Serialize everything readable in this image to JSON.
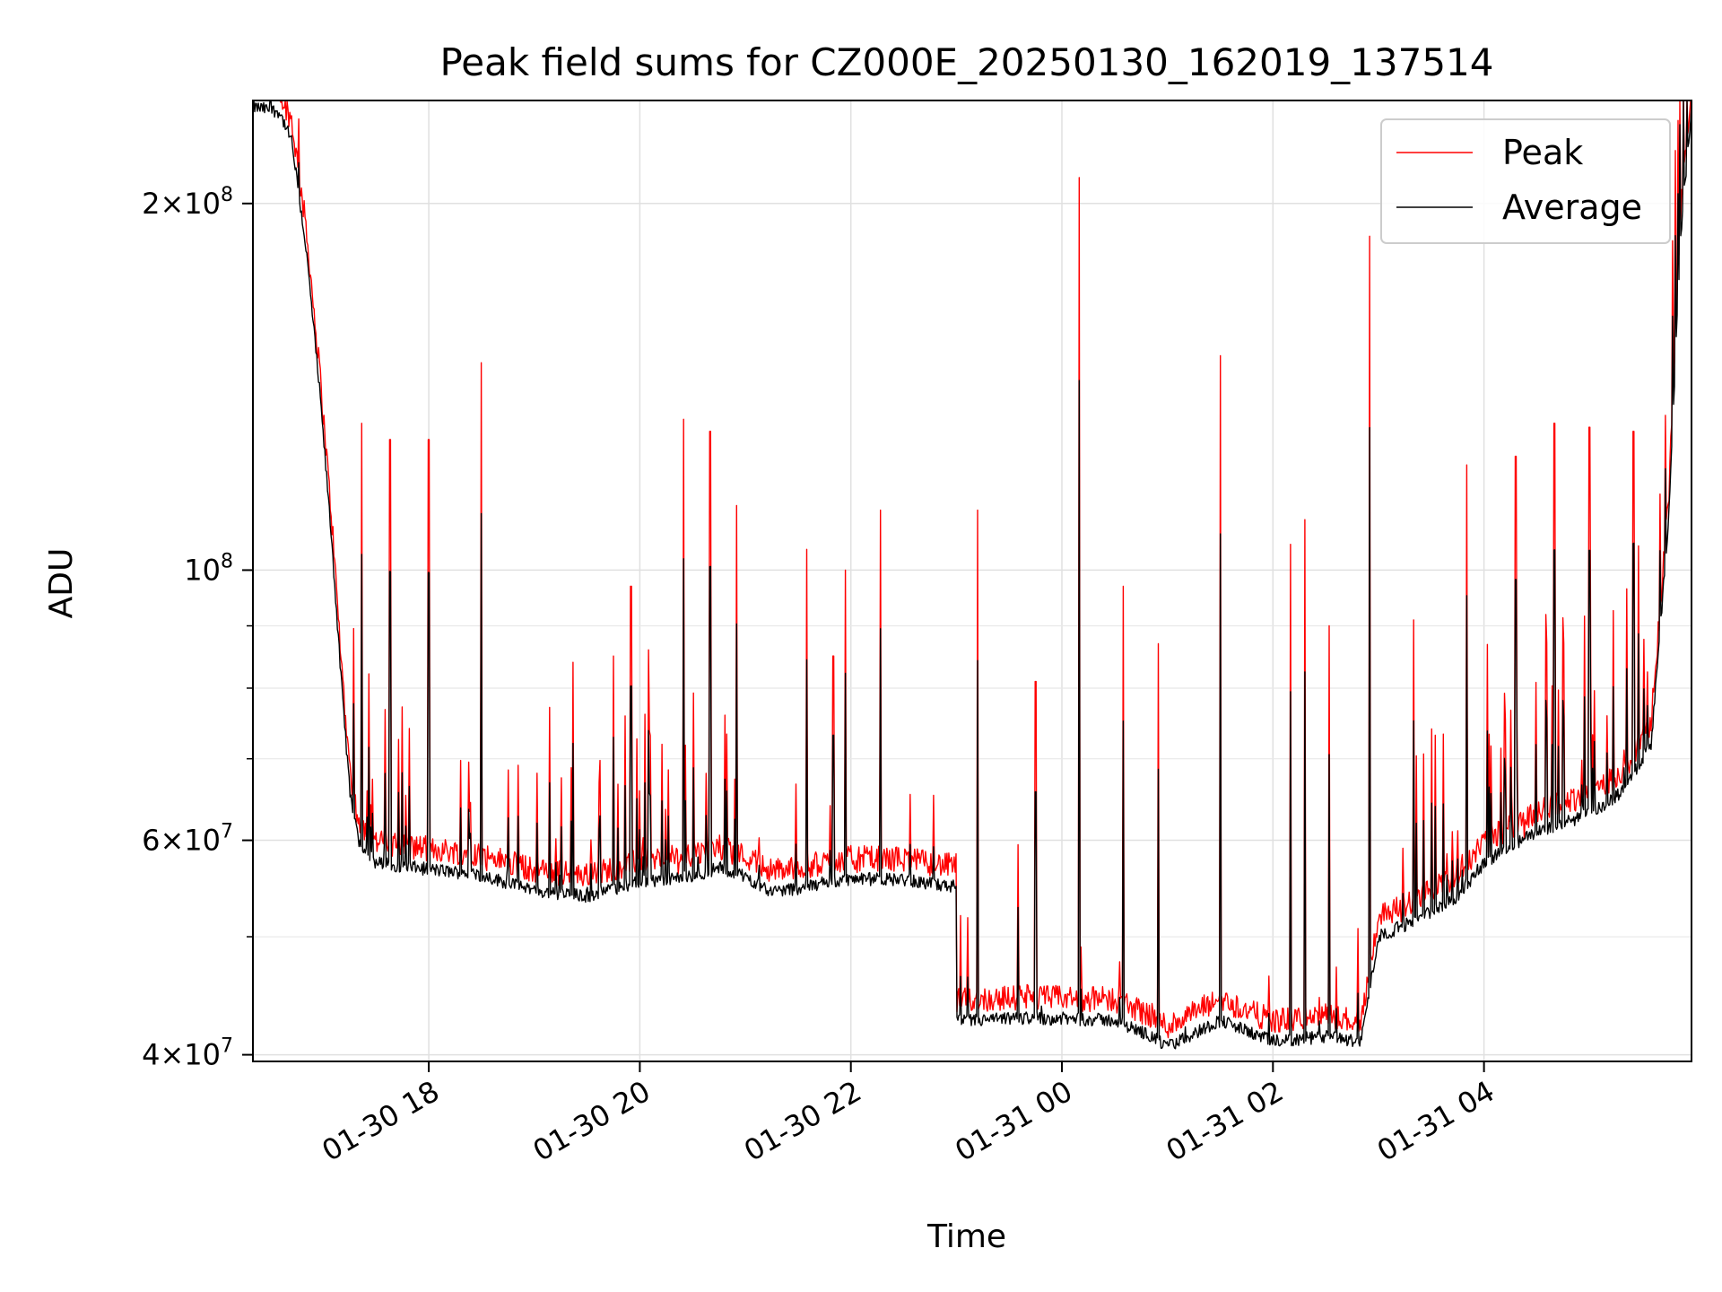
{
  "chart_data": {
    "type": "line",
    "title": "Peak field sums for CZ000E_20250130_162019_137514",
    "xlabel": "Time",
    "ylabel": "ADU",
    "y_scale": "log",
    "ylim": [
      39500000,
      243000000
    ],
    "xlim": [
      "2025-01-30 16:20",
      "2025-01-31 05:58"
    ],
    "grid": true,
    "legend_position": "top-right",
    "x_ticks": [
      {
        "value": "2025-01-30 18:00",
        "label": "01-30 18"
      },
      {
        "value": "2025-01-30 20:00",
        "label": "01-30 20"
      },
      {
        "value": "2025-01-30 22:00",
        "label": "01-30 22"
      },
      {
        "value": "2025-01-31 00:00",
        "label": "01-31 00"
      },
      {
        "value": "2025-01-31 02:00",
        "label": "01-31 02"
      },
      {
        "value": "2025-01-31 04:00",
        "label": "01-31 04"
      }
    ],
    "y_ticks": [
      {
        "value": 40000000,
        "base": "4",
        "exp": "7"
      },
      {
        "value": 60000000,
        "base": "6",
        "exp": "7"
      },
      {
        "value": 100000000,
        "base": "",
        "exp": "8"
      },
      {
        "value": 200000000,
        "base": "2",
        "exp": "8"
      }
    ],
    "y_minor_ticks": [
      50000000,
      70000000,
      80000000,
      90000000
    ],
    "series": [
      {
        "name": "Peak",
        "color": "#ff0000"
      },
      {
        "name": "Average",
        "color": "#000000"
      }
    ],
    "average_baseline": [
      [
        "2025-01-30 16:20",
        240000000
      ],
      [
        "2025-01-30 16:35",
        238000000
      ],
      [
        "2025-01-30 16:42",
        225000000
      ],
      [
        "2025-01-30 16:50",
        185000000
      ],
      [
        "2025-01-30 16:58",
        140000000
      ],
      [
        "2025-01-30 17:05",
        105000000
      ],
      [
        "2025-01-30 17:10",
        82000000
      ],
      [
        "2025-01-30 17:15",
        66000000
      ],
      [
        "2025-01-30 17:20",
        60000000
      ],
      [
        "2025-01-30 17:30",
        57500000
      ],
      [
        "2025-01-30 18:00",
        56800000
      ],
      [
        "2025-01-30 18:30",
        56200000
      ],
      [
        "2025-01-30 19:00",
        54500000
      ],
      [
        "2025-01-30 19:30",
        54000000
      ],
      [
        "2025-01-30 20:00",
        55500000
      ],
      [
        "2025-01-30 20:30",
        56000000
      ],
      [
        "2025-01-30 20:45",
        57000000
      ],
      [
        "2025-01-30 21:00",
        56000000
      ],
      [
        "2025-01-30 21:15",
        54500000
      ],
      [
        "2025-01-30 21:30",
        54800000
      ],
      [
        "2025-01-30 22:00",
        55800000
      ],
      [
        "2025-01-30 22:30",
        55700000
      ],
      [
        "2025-01-30 22:55",
        55000000
      ],
      [
        "2025-01-30 23:00",
        55000000
      ],
      [
        "2025-01-30 23:00",
        42600000
      ],
      [
        "2025-01-30 23:40",
        42900000
      ],
      [
        "2025-01-31 00:30",
        42700000
      ],
      [
        "2025-01-31 00:50",
        41500000
      ],
      [
        "2025-01-31 01:00",
        40600000
      ],
      [
        "2025-01-31 01:30",
        42700000
      ],
      [
        "2025-01-31 02:00",
        41000000
      ],
      [
        "2025-01-31 02:30",
        41400000
      ],
      [
        "2025-01-31 02:50",
        41000000
      ],
      [
        "2025-01-31 03:00",
        50000000
      ],
      [
        "2025-01-31 03:20",
        51500000
      ],
      [
        "2025-01-31 03:45",
        54000000
      ],
      [
        "2025-01-31 04:00",
        57500000
      ],
      [
        "2025-01-31 04:30",
        61000000
      ],
      [
        "2025-01-31 05:00",
        63000000
      ],
      [
        "2025-01-31 05:20",
        66000000
      ],
      [
        "2025-01-31 05:35",
        72000000
      ],
      [
        "2025-01-31 05:45",
        110000000
      ],
      [
        "2025-01-31 05:52",
        190000000
      ],
      [
        "2025-01-31 05:58",
        240000000
      ]
    ],
    "peak_spikes": [
      [
        "2025-01-30 17:22",
        132000000
      ],
      [
        "2025-01-30 17:38",
        128000000
      ],
      [
        "2025-01-30 18:00",
        128000000
      ],
      [
        "2025-01-30 18:30",
        148000000
      ],
      [
        "2025-01-30 19:22",
        84000000
      ],
      [
        "2025-01-30 19:45",
        85000000
      ],
      [
        "2025-01-30 19:55",
        97000000
      ],
      [
        "2025-01-30 20:05",
        86000000
      ],
      [
        "2025-01-30 20:25",
        133000000
      ],
      [
        "2025-01-30 20:40",
        130000000
      ],
      [
        "2025-01-30 20:55",
        113000000
      ],
      [
        "2025-01-30 21:35",
        104000000
      ],
      [
        "2025-01-30 21:50",
        85000000
      ],
      [
        "2025-01-30 21:57",
        100000000
      ],
      [
        "2025-01-30 22:17",
        112000000
      ],
      [
        "2025-01-30 23:12",
        112000000
      ],
      [
        "2025-01-30 23:35",
        59500000
      ],
      [
        "2025-01-30 23:45",
        81000000
      ],
      [
        "2025-01-31 00:10",
        210000000
      ],
      [
        "2025-01-31 00:35",
        97000000
      ],
      [
        "2025-01-31 00:55",
        87000000
      ],
      [
        "2025-01-31 01:30",
        150000000
      ],
      [
        "2025-01-31 02:10",
        105000000
      ],
      [
        "2025-01-31 02:18",
        110000000
      ],
      [
        "2025-01-31 02:32",
        90000000
      ],
      [
        "2025-01-31 02:55",
        188000000
      ],
      [
        "2025-01-31 03:20",
        91000000
      ],
      [
        "2025-01-31 03:50",
        122000000
      ],
      [
        "2025-01-31 04:18",
        124000000
      ],
      [
        "2025-01-31 04:40",
        132000000
      ],
      [
        "2025-01-31 05:00",
        131000000
      ],
      [
        "2025-01-31 05:25",
        130000000
      ],
      [
        "2025-01-31 05:43",
        134000000
      ]
    ]
  }
}
